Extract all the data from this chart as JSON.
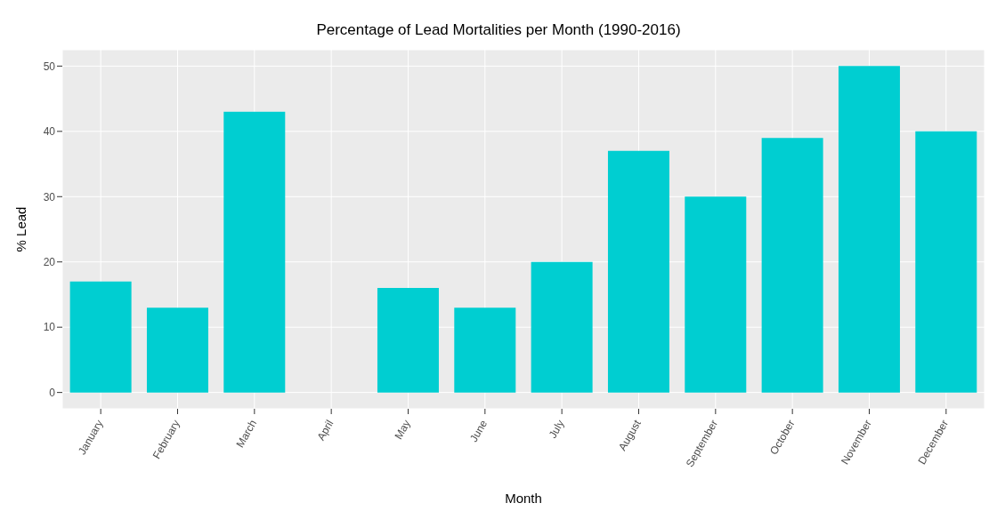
{
  "chart_data": {
    "type": "bar",
    "title": "Percentage of Lead Mortalities per Month (1990-2016)",
    "xlabel": "Month",
    "ylabel": "% Lead",
    "categories": [
      "January",
      "February",
      "March",
      "April",
      "May",
      "June",
      "July",
      "August",
      "September",
      "October",
      "November",
      "December"
    ],
    "values": [
      17,
      13,
      43,
      0,
      16,
      13,
      20,
      37,
      30,
      39,
      50,
      40
    ],
    "color": "#00ced1",
    "ylim": [
      -2.5,
      52.5
    ],
    "yticks": [
      0,
      10,
      20,
      30,
      40,
      50
    ],
    "grid": true
  }
}
